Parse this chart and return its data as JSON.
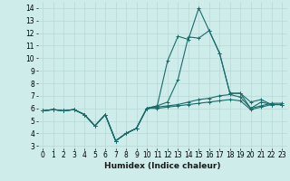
{
  "x": [
    0,
    1,
    2,
    3,
    4,
    5,
    6,
    7,
    8,
    9,
    10,
    11,
    12,
    13,
    14,
    15,
    16,
    17,
    18,
    19,
    20,
    21,
    22,
    23
  ],
  "series": [
    [
      5.8,
      5.9,
      5.8,
      5.9,
      5.5,
      4.6,
      5.5,
      3.4,
      4.0,
      4.4,
      6.0,
      6.0,
      6.1,
      6.2,
      6.3,
      6.4,
      6.5,
      6.6,
      6.7,
      6.6,
      5.9,
      6.1,
      6.3,
      6.3
    ],
    [
      5.8,
      5.9,
      5.8,
      5.9,
      5.5,
      4.6,
      5.5,
      3.4,
      4.0,
      4.4,
      6.0,
      6.1,
      6.2,
      6.3,
      6.5,
      6.7,
      6.8,
      7.0,
      7.1,
      6.9,
      6.0,
      6.2,
      6.4,
      6.4
    ],
    [
      5.8,
      5.9,
      5.8,
      5.9,
      5.5,
      4.6,
      5.5,
      3.4,
      4.0,
      4.4,
      6.0,
      6.2,
      6.5,
      8.3,
      11.7,
      11.6,
      12.2,
      10.4,
      7.2,
      7.2,
      6.5,
      6.7,
      6.3,
      6.3
    ],
    [
      5.8,
      5.9,
      5.8,
      5.9,
      5.5,
      4.6,
      5.5,
      3.4,
      4.0,
      4.4,
      6.0,
      6.2,
      9.8,
      11.75,
      11.5,
      14.0,
      12.2,
      10.4,
      7.2,
      7.2,
      6.0,
      6.5,
      6.3,
      6.3
    ]
  ],
  "line_color": "#1a6b6b",
  "marker": "+",
  "markersize": 3,
  "linewidth": 0.8,
  "xlabel": "Humidex (Indice chaleur)",
  "xlim": [
    -0.5,
    23.5
  ],
  "ylim": [
    2.8,
    14.5
  ],
  "yticks": [
    3,
    4,
    5,
    6,
    7,
    8,
    9,
    10,
    11,
    12,
    13,
    14
  ],
  "xticks": [
    0,
    1,
    2,
    3,
    4,
    5,
    6,
    7,
    8,
    9,
    10,
    11,
    12,
    13,
    14,
    15,
    16,
    17,
    18,
    19,
    20,
    21,
    22,
    23
  ],
  "bg_color": "#ceecea",
  "grid_color": "#b8d8d6",
  "tick_fontsize": 5.5,
  "xlabel_fontsize": 6.5
}
